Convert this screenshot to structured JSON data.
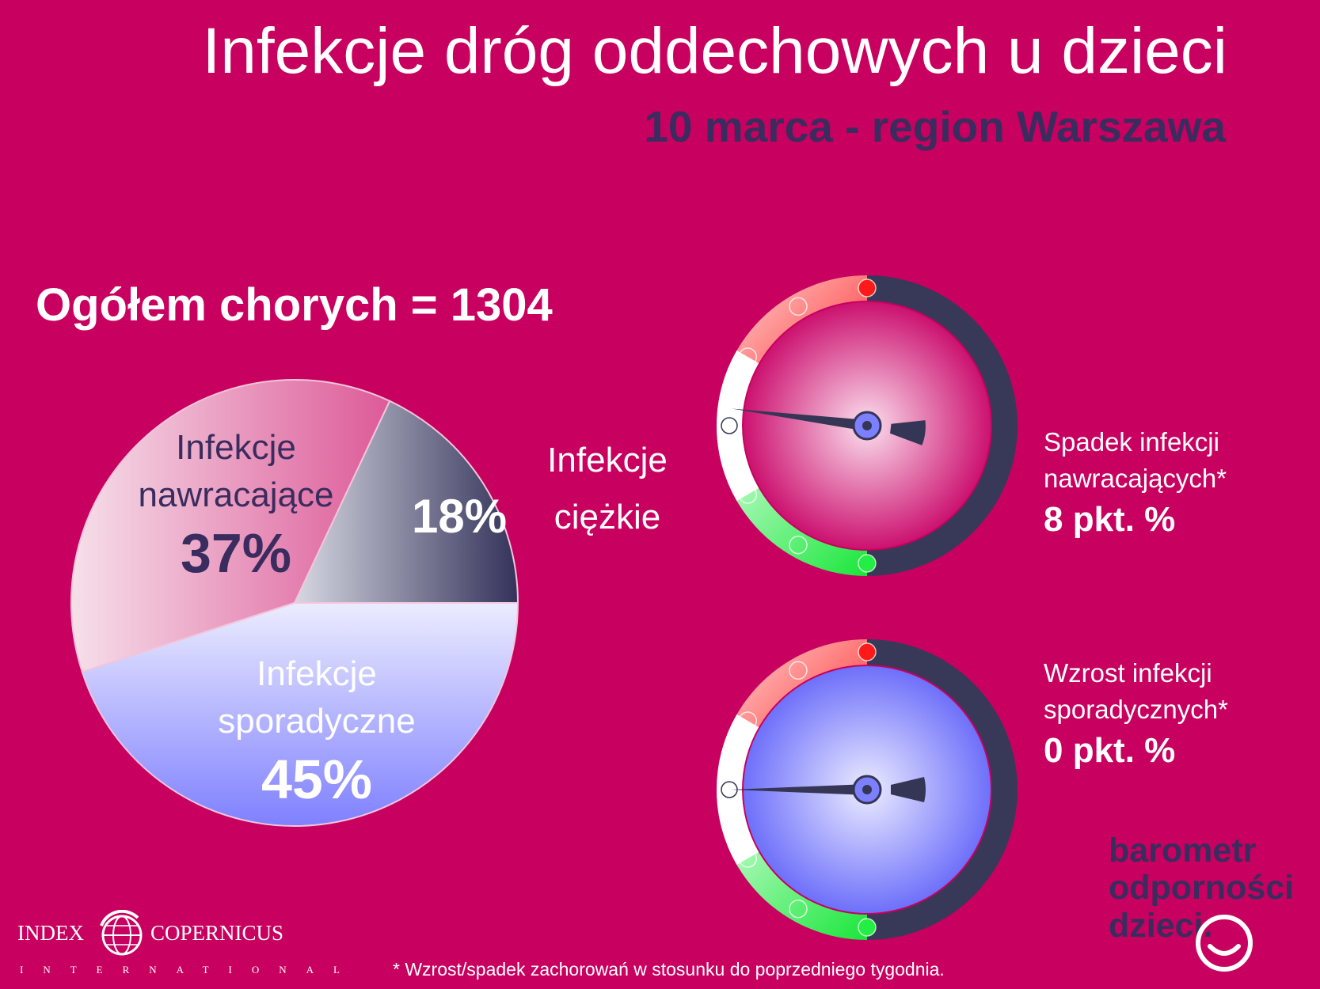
{
  "header": {
    "title": "Infekcje dróg oddechowych u dzieci",
    "subtitle": "10 marca - region Warszawa"
  },
  "total_label": "Ogółem chorych = 1304",
  "chart_data": [
    {
      "type": "pie",
      "title": "",
      "slices": [
        {
          "name": "Infekcje ciężkie",
          "label_lines": [
            "Infekcje",
            "ciężkie"
          ],
          "value": 18,
          "value_label": "18%",
          "color": "#3a3760"
        },
        {
          "name": "Infekcje nawracające",
          "label_lines": [
            "Infekcje",
            "nawracające"
          ],
          "value": 37,
          "value_label": "37%",
          "color": "#e882b0"
        },
        {
          "name": "Infekcje sporadyczne",
          "label_lines": [
            "Infekcje",
            "sporadyczne"
          ],
          "value": 45,
          "value_label": "45%",
          "color": "#8a8cff"
        }
      ]
    },
    {
      "type": "gauge",
      "text_lines": [
        "Spadek infekcji",
        "nawracających*"
      ],
      "value_label": "8 pkt. %",
      "change_points": -8,
      "needle_position": -0.92,
      "face_color": "#c8005f"
    },
    {
      "type": "gauge",
      "text_lines": [
        "Wzrost infekcji",
        "sporadycznych*"
      ],
      "value_label": "0 pkt. %",
      "change_points": 0,
      "needle_position": -1.0,
      "face_color": "#7b7cff"
    }
  ],
  "logo": {
    "lines": [
      "barometr",
      "odporności",
      "dzieci."
    ]
  },
  "publisher": {
    "left": "INDEX",
    "right": "COPERNICUS",
    "sub": "INTERNATIONAL"
  },
  "footnote": "* Wzrost/spadek zachorowań w stosunku do poprzedniego tygodnia.",
  "colors": {
    "background": "#c8005f",
    "title": "#ffffff",
    "subtitle": "#3a2c5e",
    "gauge_red": "#ff1a1a",
    "gauge_green": "#22ee44",
    "gauge_dark": "#383859"
  }
}
